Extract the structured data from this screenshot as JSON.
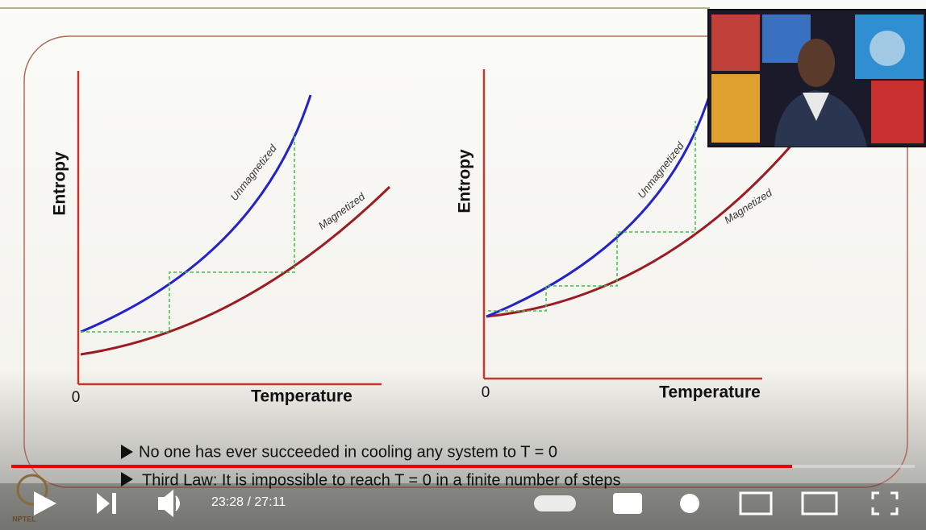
{
  "slide": {
    "plots": [
      {
        "y_label": "Entropy",
        "x_label": "Temperature",
        "origin": "0",
        "upper_curve": "Unmagnetized",
        "lower_curve": "Magnetized"
      },
      {
        "y_label": "Entropy",
        "x_label": "Temperature",
        "origin": "0",
        "upper_curve": "Unmagnetized",
        "lower_curve": "Magnetized"
      }
    ],
    "bullets": [
      "No one has ever succeeded in cooling any system to T = 0",
      "Third Law: It is impossible to reach T = 0 in a finite number of steps"
    ]
  },
  "player": {
    "time": "23:28 / 27:11",
    "logo": "NPTEL"
  }
}
